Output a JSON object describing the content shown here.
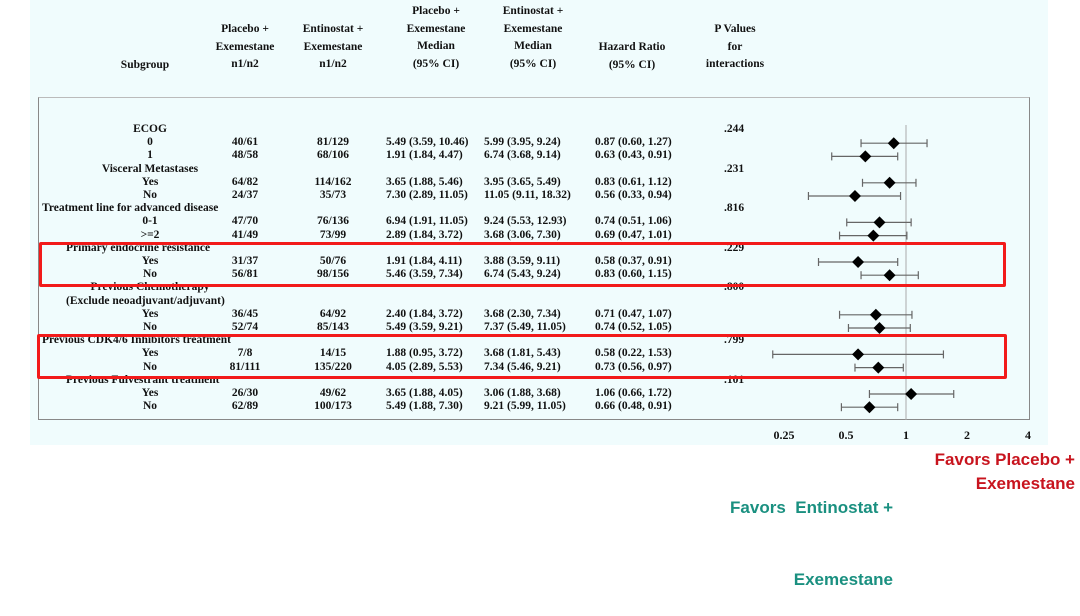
{
  "chart_data": {
    "type": "forest",
    "headers": {
      "subgroup": "Subgroup",
      "placebo_n": [
        "Placebo +",
        "Exemestane",
        "n1/n2"
      ],
      "entinostat_n": [
        "Entinostat +",
        "Exemestane",
        "n1/n2"
      ],
      "placebo_median": [
        "Placebo +",
        "Exemestane",
        "Median",
        "(95% CI)"
      ],
      "entinostat_median": [
        "Entinostat +",
        "Exemestane",
        "Median",
        "(95% CI)"
      ],
      "hr": [
        "Hazard Ratio",
        "(95% CI)"
      ],
      "p": [
        "P Values",
        "for",
        "interactions"
      ]
    },
    "rows": [
      {
        "label": "ECOG",
        "kind": "group",
        "p": ".244"
      },
      {
        "label": "0",
        "pn": "40/61",
        "en": "81/129",
        "pm": "5.49 (3.59, 10.46)",
        "em": "5.99 (3.95, 9.24)",
        "hr_text": "0.87 (0.60, 1.27)",
        "hr": 0.87,
        "lo": 0.6,
        "hi": 1.27
      },
      {
        "label": "1",
        "pn": "48/58",
        "en": "68/106",
        "pm": "1.91 (1.84, 4.47)",
        "em": "6.74 (3.68, 9.14)",
        "hr_text": "0.63 (0.43, 0.91)",
        "hr": 0.63,
        "lo": 0.43,
        "hi": 0.91
      },
      {
        "label": "Visceral Metastases",
        "kind": "group",
        "p": ".231"
      },
      {
        "label": "Yes",
        "pn": "64/82",
        "en": "114/162",
        "pm": "3.65 (1.88, 5.46)",
        "em": "3.95 (3.65, 5.49)",
        "hr_text": "0.83 (0.61, 1.12)",
        "hr": 0.83,
        "lo": 0.61,
        "hi": 1.12
      },
      {
        "label": "No",
        "pn": "24/37",
        "en": "35/73",
        "pm": "7.30 (2.89, 11.05)",
        "em": "11.05 (9.11, 18.32)",
        "hr_text": "0.56 (0.33, 0.94)",
        "hr": 0.56,
        "lo": 0.33,
        "hi": 0.94
      },
      {
        "label": "Treatment line for advanced disease",
        "kind": "group-left",
        "p": ".816"
      },
      {
        "label": "0-1",
        "pn": "47/70",
        "en": "76/136",
        "pm": "6.94 (1.91, 11.05)",
        "em": "9.24 (5.53, 12.93)",
        "hr_text": "0.74 (0.51, 1.06)",
        "hr": 0.74,
        "lo": 0.51,
        "hi": 1.06
      },
      {
        "label": ">=2",
        "pn": "41/49",
        "en": "73/99",
        "pm": "2.89 (1.84, 3.72)",
        "em": "3.68 (3.06, 7.30)",
        "hr_text": "0.69 (0.47, 1.01)",
        "hr": 0.69,
        "lo": 0.47,
        "hi": 1.01
      },
      {
        "label": "Primary endocrine resistance",
        "kind": "group-left2",
        "p": ".229"
      },
      {
        "label": "Yes",
        "pn": "31/37",
        "en": "50/76",
        "pm": "1.91 (1.84, 4.11)",
        "em": "3.88 (3.59, 9.11)",
        "hr_text": "0.58 (0.37, 0.91)",
        "hr": 0.58,
        "lo": 0.37,
        "hi": 0.91
      },
      {
        "label": "No",
        "pn": "56/81",
        "en": "98/156",
        "pm": "5.46 (3.59, 7.34)",
        "em": "6.74 (5.43, 9.24)",
        "hr_text": "0.83 (0.60, 1.15)",
        "hr": 0.83,
        "lo": 0.6,
        "hi": 1.15
      },
      {
        "label": "Previous Chemotherapy",
        "kind": "group",
        "p": ".800"
      },
      {
        "label": "(Exclude neoadjuvant/adjuvant)",
        "kind": "group-left2"
      },
      {
        "label": "Yes",
        "pn": "36/45",
        "en": "64/92",
        "pm": "2.40 (1.84, 3.72)",
        "em": "3.68 (2.30, 7.34)",
        "hr_text": "0.71 (0.47, 1.07)",
        "hr": 0.71,
        "lo": 0.47,
        "hi": 1.07
      },
      {
        "label": "No",
        "pn": "52/74",
        "en": "85/143",
        "pm": "5.49 (3.59, 9.21)",
        "em": "7.37 (5.49, 11.05)",
        "hr_text": "0.74 (0.52, 1.05)",
        "hr": 0.74,
        "lo": 0.52,
        "hi": 1.05
      },
      {
        "label": "Previous CDK4/6 Inhibitors treatment",
        "kind": "group-left",
        "p": ".799"
      },
      {
        "label": "Yes",
        "pn": "7/8",
        "en": "14/15",
        "pm": "1.88 (0.95, 3.72)",
        "em": "3.68 (1.81, 5.43)",
        "hr_text": "0.58 (0.22, 1.53)",
        "hr": 0.58,
        "lo": 0.22,
        "hi": 1.53
      },
      {
        "label": "No",
        "pn": "81/111",
        "en": "135/220",
        "pm": "4.05 (2.89, 5.53)",
        "em": "7.34 (5.46, 9.21)",
        "hr_text": "0.73 (0.56, 0.97)",
        "hr": 0.73,
        "lo": 0.56,
        "hi": 0.97
      },
      {
        "label": "Previous Fulvestrant treatment",
        "kind": "group-left2",
        "p": ".101"
      },
      {
        "label": "Yes",
        "pn": "26/30",
        "en": "49/62",
        "pm": "3.65 (1.88, 4.05)",
        "em": "3.06 (1.88, 3.68)",
        "hr_text": "1.06 (0.66, 1.72)",
        "hr": 1.06,
        "lo": 0.66,
        "hi": 1.72
      },
      {
        "label": "No",
        "pn": "62/89",
        "en": "100/173",
        "pm": "5.49 (1.88, 7.30)",
        "em": "9.21 (5.99, 11.05)",
        "hr_text": "0.66 (0.48, 0.91)",
        "hr": 0.66,
        "lo": 0.48,
        "hi": 0.91
      }
    ],
    "x_axis": {
      "scale": "log",
      "ticks": [
        "0.25",
        "0.5",
        "1",
        "2",
        "4"
      ],
      "tick_values": [
        0.25,
        0.5,
        1,
        2,
        4
      ],
      "reference": 1
    },
    "favors_left": [
      "Favors  Entinostat +",
      "Exemestane"
    ],
    "favors_right": [
      "Favors Placebo +",
      "Exemestane"
    ],
    "highlighted_groups": [
      "Primary endocrine resistance",
      "Previous CDK4/6 Inhibitors treatment"
    ],
    "colors": {
      "favors_left": "#1a9080",
      "favors_right": "#c8141e",
      "highlight": "#f21a1a",
      "panel": "#f0fcfd"
    }
  }
}
